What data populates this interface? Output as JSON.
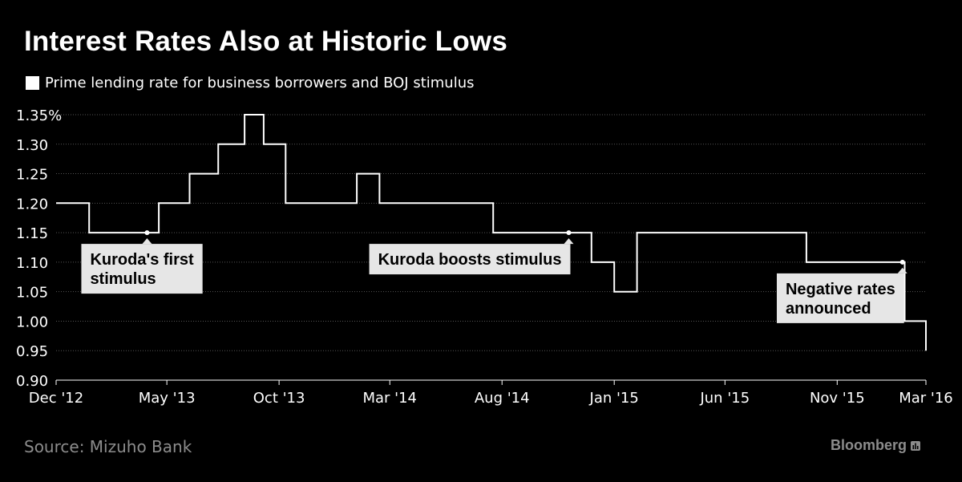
{
  "header": {
    "title": "Interest Rates Also at Historic Lows",
    "legend_label": "Prime lending rate for business borrowers and BOJ stimulus"
  },
  "footer": {
    "source": "Source: Mizuho Bank",
    "brand": "Bloomberg",
    "brand_icon": "bar-chart-icon"
  },
  "colors": {
    "background": "#000000",
    "line": "#ffffff",
    "grid": "#555555",
    "annotation_box": "#e6e6e6",
    "footer_text": "#8c8c8c"
  },
  "chart_data": {
    "type": "line",
    "step": true,
    "title": "Interest Rates Also at Historic Lows",
    "series": [
      {
        "name": "Prime lending rate for business borrowers and BOJ stimulus",
        "points": [
          [
            "2012-12-01",
            1.2
          ],
          [
            "2013-01-15",
            1.2
          ],
          [
            "2013-01-15",
            1.15
          ],
          [
            "2013-04-20",
            1.15
          ],
          [
            "2013-04-20",
            1.2
          ],
          [
            "2013-06-01",
            1.2
          ],
          [
            "2013-06-01",
            1.25
          ],
          [
            "2013-07-10",
            1.25
          ],
          [
            "2013-07-10",
            1.3
          ],
          [
            "2013-08-15",
            1.3
          ],
          [
            "2013-08-15",
            1.35
          ],
          [
            "2013-09-10",
            1.35
          ],
          [
            "2013-09-10",
            1.3
          ],
          [
            "2013-10-10",
            1.3
          ],
          [
            "2013-10-10",
            1.2
          ],
          [
            "2014-01-15",
            1.2
          ],
          [
            "2014-01-15",
            1.25
          ],
          [
            "2014-02-15",
            1.25
          ],
          [
            "2014-02-15",
            1.2
          ],
          [
            "2014-07-20",
            1.2
          ],
          [
            "2014-07-20",
            1.15
          ],
          [
            "2014-12-01",
            1.15
          ],
          [
            "2014-12-01",
            1.1
          ],
          [
            "2015-01-01",
            1.1
          ],
          [
            "2015-01-01",
            1.05
          ],
          [
            "2015-02-01",
            1.05
          ],
          [
            "2015-02-01",
            1.15
          ],
          [
            "2015-09-20",
            1.15
          ],
          [
            "2015-09-20",
            1.1
          ],
          [
            "2016-02-01",
            1.1
          ],
          [
            "2016-02-01",
            1.0
          ],
          [
            "2016-03-01",
            1.0
          ],
          [
            "2016-03-01",
            0.95
          ]
        ]
      }
    ],
    "x_ticks": [
      "Dec '12",
      "May '13",
      "Oct '13",
      "Mar '14",
      "Aug '14",
      "Jan '15",
      "Jun '15",
      "Nov '15",
      "Mar '16"
    ],
    "x_tick_dates": [
      "2012-12-01",
      "2013-05-01",
      "2013-10-01",
      "2014-03-01",
      "2014-08-01",
      "2015-01-01",
      "2015-06-01",
      "2015-11-01",
      "2016-03-01"
    ],
    "x_range": [
      "2012-12-01",
      "2016-03-01"
    ],
    "y_ticks": [
      "1.35%",
      "1.30",
      "1.25",
      "1.20",
      "1.15",
      "1.10",
      "1.05",
      "1.00",
      "0.95",
      "0.90"
    ],
    "y_tick_values": [
      1.35,
      1.3,
      1.25,
      1.2,
      1.15,
      1.1,
      1.05,
      1.0,
      0.95,
      0.9
    ],
    "ylim": [
      0.9,
      1.35
    ],
    "grid": true,
    "annotations": [
      {
        "text": [
          "Kuroda's first",
          "stimulus"
        ],
        "date": "2013-04-04",
        "value": 1.15
      },
      {
        "text": [
          "Kuroda boosts stimulus"
        ],
        "date": "2014-10-31",
        "value": 1.15
      },
      {
        "text": [
          "Negative rates",
          "announced"
        ],
        "date": "2016-01-29",
        "value": 1.1
      }
    ]
  }
}
